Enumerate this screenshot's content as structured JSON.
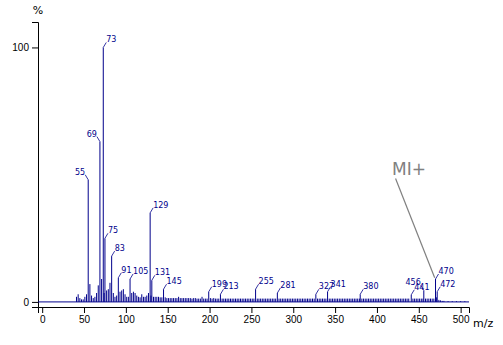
{
  "chart_data": {
    "type": "stem",
    "xlabel": "m/z",
    "ylabel": "%",
    "color": "#00008B",
    "xlim": [
      -5,
      510
    ],
    "ylim": [
      -2,
      110
    ],
    "xticks": [
      0,
      50,
      100,
      150,
      200,
      250,
      300,
      350,
      400,
      450,
      500
    ],
    "yticks": [
      0,
      100
    ],
    "x": [
      41,
      43,
      45,
      47,
      49,
      51,
      53,
      55,
      57,
      59,
      61,
      63,
      65,
      67,
      69,
      71,
      73,
      74,
      75,
      77,
      79,
      81,
      83,
      85,
      87,
      89,
      91,
      93,
      95,
      97,
      99,
      101,
      103,
      105,
      107,
      109,
      111,
      113,
      115,
      117,
      119,
      121,
      123,
      125,
      127,
      129,
      130,
      131,
      133,
      135,
      137,
      139,
      141,
      143,
      145,
      147,
      149,
      151,
      153,
      155,
      157,
      159,
      161,
      163,
      165,
      167,
      169,
      171,
      173,
      175,
      177,
      179,
      181,
      183,
      185,
      187,
      189,
      191,
      193,
      195,
      197,
      199,
      201,
      203,
      205,
      207,
      209,
      211,
      213,
      215,
      217,
      219,
      221,
      223,
      225,
      227,
      229,
      231,
      233,
      235,
      237,
      239,
      241,
      243,
      245,
      247,
      249,
      251,
      253,
      255,
      257,
      259,
      261,
      263,
      265,
      267,
      269,
      271,
      273,
      275,
      277,
      279,
      281,
      283,
      285,
      287,
      289,
      291,
      293,
      295,
      297,
      299,
      301,
      303,
      305,
      307,
      309,
      311,
      313,
      315,
      317,
      319,
      321,
      323,
      325,
      327,
      329,
      331,
      333,
      335,
      337,
      339,
      341,
      343,
      345,
      347,
      349,
      351,
      353,
      355,
      357,
      359,
      361,
      363,
      365,
      367,
      369,
      371,
      373,
      375,
      377,
      379,
      380,
      382,
      384,
      386,
      388,
      390,
      392,
      394,
      396,
      398,
      400,
      402,
      404,
      406,
      408,
      410,
      412,
      414,
      416,
      418,
      420,
      422,
      424,
      426,
      428,
      430,
      432,
      434,
      436,
      438,
      441,
      443,
      445,
      447,
      449,
      451,
      453,
      455,
      456,
      458,
      460,
      462,
      464,
      466,
      468,
      470,
      471,
      472,
      474,
      476,
      478,
      480,
      485,
      490,
      495,
      500,
      505
    ],
    "values": [
      2.0,
      3.0,
      1.5,
      1.0,
      1.0,
      2.0,
      3.0,
      48.0,
      7.0,
      2.5,
      1.5,
      2.0,
      3.5,
      6.5,
      63.0,
      9.0,
      100.0,
      3.5,
      25.0,
      4.5,
      5.0,
      7.5,
      18.0,
      3.5,
      2.0,
      2.5,
      9.5,
      4.0,
      4.5,
      5.0,
      3.0,
      2.0,
      2.0,
      9.0,
      3.5,
      4.0,
      3.5,
      2.5,
      2.0,
      1.8,
      3.0,
      2.0,
      2.0,
      2.5,
      3.5,
      35.0,
      2.5,
      8.5,
      2.0,
      2.0,
      2.0,
      2.0,
      1.8,
      1.8,
      5.0,
      1.8,
      1.5,
      1.5,
      1.5,
      1.5,
      1.5,
      1.5,
      1.5,
      2.0,
      1.5,
      1.5,
      1.5,
      1.5,
      1.5,
      1.5,
      1.5,
      1.3,
      1.5,
      1.5,
      1.3,
      1.3,
      1.3,
      2.0,
      1.3,
      1.3,
      1.3,
      4.0,
      1.5,
      1.3,
      1.5,
      1.3,
      1.3,
      1.3,
      3.0,
      1.3,
      1.3,
      1.3,
      1.3,
      1.3,
      1.3,
      1.3,
      1.3,
      1.3,
      1.3,
      1.3,
      1.3,
      1.3,
      1.3,
      1.3,
      1.3,
      1.3,
      1.3,
      1.3,
      1.3,
      5.0,
      1.3,
      1.3,
      1.3,
      1.3,
      1.3,
      1.3,
      1.3,
      1.3,
      1.3,
      1.3,
      1.3,
      1.3,
      3.5,
      1.3,
      1.3,
      1.3,
      1.3,
      1.3,
      1.3,
      1.3,
      1.3,
      1.3,
      1.3,
      1.3,
      1.3,
      1.3,
      1.3,
      1.3,
      1.3,
      1.3,
      1.3,
      1.3,
      1.3,
      1.3,
      1.3,
      3.0,
      1.3,
      1.3,
      1.3,
      1.3,
      1.3,
      1.3,
      4.0,
      1.3,
      1.3,
      1.3,
      1.3,
      1.3,
      1.3,
      1.3,
      1.3,
      1.3,
      1.3,
      1.3,
      1.3,
      1.3,
      1.3,
      1.3,
      1.3,
      1.3,
      1.3,
      1.3,
      3.0,
      1.3,
      1.3,
      1.3,
      1.3,
      1.3,
      1.3,
      1.3,
      1.3,
      1.3,
      1.3,
      1.3,
      1.3,
      1.3,
      1.3,
      1.3,
      1.3,
      1.3,
      1.3,
      1.3,
      1.3,
      1.3,
      1.3,
      1.3,
      1.3,
      1.3,
      1.3,
      1.3,
      1.3,
      1.3,
      2.8,
      1.3,
      1.3,
      1.3,
      1.3,
      1.3,
      1.3,
      1.3,
      4.5,
      1.3,
      1.3,
      1.3,
      1.3,
      1.3,
      1.3,
      9.0,
      1.8,
      4.0,
      0.8,
      0.6,
      0.4,
      0.4,
      0.3,
      0.3,
      0.3,
      0.3,
      0.3
    ],
    "annotations": [
      {
        "text": "55",
        "x": 55,
        "y": 48.0
      },
      {
        "text": "69",
        "x": 69,
        "y": 63.0
      },
      {
        "text": "73",
        "x": 73,
        "y": 100.0
      },
      {
        "text": "75",
        "x": 75,
        "y": 25.0
      },
      {
        "text": "83",
        "x": 83,
        "y": 18.0
      },
      {
        "text": "91",
        "x": 91,
        "y": 9.5
      },
      {
        "text": "105",
        "x": 105,
        "y": 9.0
      },
      {
        "text": "129",
        "x": 129,
        "y": 35.0
      },
      {
        "text": "131",
        "x": 131,
        "y": 8.5
      },
      {
        "text": "145",
        "x": 145,
        "y": 5.0
      },
      {
        "text": "199",
        "x": 199,
        "y": 4.0
      },
      {
        "text": "213",
        "x": 213,
        "y": 3.0
      },
      {
        "text": "255",
        "x": 255,
        "y": 5.0
      },
      {
        "text": "281",
        "x": 281,
        "y": 3.5
      },
      {
        "text": "327",
        "x": 327,
        "y": 3.0
      },
      {
        "text": "341",
        "x": 341,
        "y": 4.0
      },
      {
        "text": "380",
        "x": 380,
        "y": 3.0
      },
      {
        "text": "441",
        "x": 441,
        "y": 2.8
      },
      {
        "text": "456",
        "x": 456,
        "y": 4.5
      },
      {
        "text": "470",
        "x": 470,
        "y": 9.0
      },
      {
        "text": "472",
        "x": 472,
        "y": 4.0
      },
      {
        "text": "MI+",
        "x": 418,
        "y": 52,
        "target_x": 469,
        "target_y": 9.5,
        "color": "#808080"
      }
    ]
  }
}
